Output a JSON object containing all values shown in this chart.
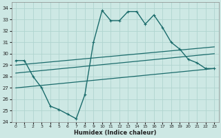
{
  "xlabel": "Humidex (Indice chaleur)",
  "bg_color": "#cde8e4",
  "grid_color": "#b0d4cf",
  "line_color": "#1a6b6b",
  "ylim": [
    24,
    34.5
  ],
  "xlim": [
    -0.5,
    23.5
  ],
  "yticks": [
    24,
    25,
    26,
    27,
    28,
    29,
    30,
    31,
    32,
    33,
    34
  ],
  "xticks": [
    0,
    1,
    2,
    3,
    4,
    5,
    6,
    7,
    8,
    9,
    10,
    11,
    12,
    13,
    14,
    15,
    16,
    17,
    18,
    19,
    20,
    21,
    22,
    23
  ],
  "series": [
    {
      "x": [
        0,
        1,
        2,
        3,
        4,
        5,
        6,
        7,
        8,
        9,
        10,
        11,
        12,
        13,
        14,
        15,
        16,
        17,
        18,
        19,
        20,
        21,
        22,
        23
      ],
      "y": [
        29.4,
        29.4,
        28.0,
        27.0,
        25.4,
        25.1,
        24.7,
        24.3,
        26.4,
        31.0,
        33.8,
        32.9,
        32.9,
        33.7,
        33.7,
        32.6,
        33.4,
        32.3,
        31.0,
        30.4,
        29.5,
        29.2,
        28.7,
        28.7
      ],
      "marker": "+"
    },
    {
      "x": [
        0,
        23
      ],
      "y": [
        29.0,
        30.6
      ],
      "marker": null
    },
    {
      "x": [
        0,
        23
      ],
      "y": [
        28.3,
        30.0
      ],
      "marker": null
    },
    {
      "x": [
        0,
        23
      ],
      "y": [
        27.0,
        28.7
      ],
      "marker": null
    }
  ]
}
